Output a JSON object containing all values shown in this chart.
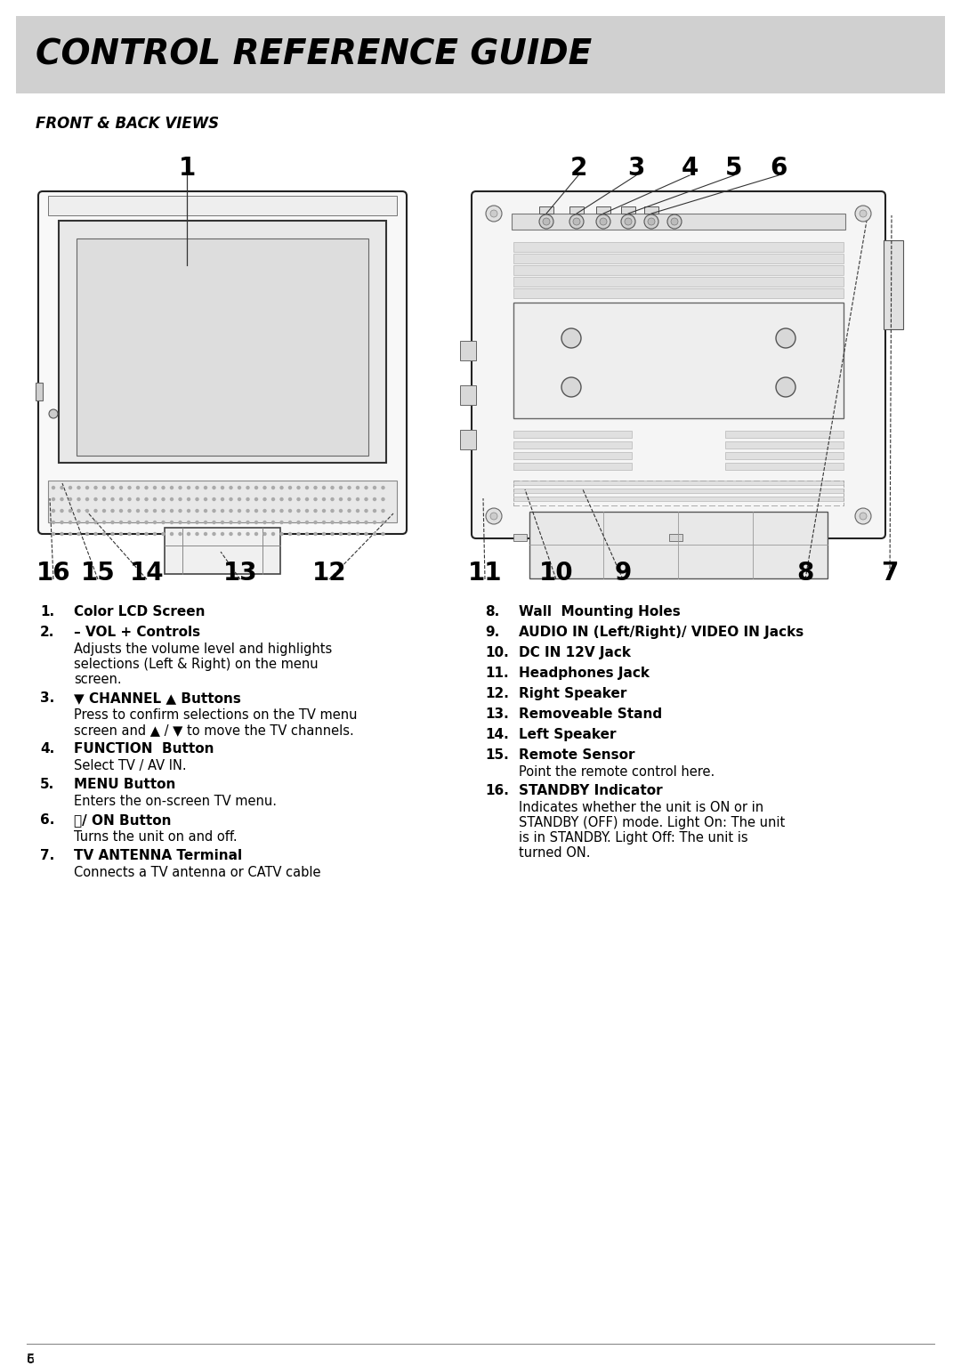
{
  "title": "CONTROL REFERENCE GUIDE",
  "subtitle": "FRONT & BACK VIEWS",
  "bg_color": "#ffffff",
  "header_bg": "#d0d0d0",
  "title_color": "#000000",
  "items_left": [
    {
      "num": "1.",
      "bold": "Color LCD Screen",
      "desc": ""
    },
    {
      "num": "2.",
      "bold": "– VOL + Controls",
      "desc": "Adjusts the volume level and highlights selections (Left & Right) on the menu screen."
    },
    {
      "num": "3.",
      "bold": "▼ CHANNEL ▲ Buttons",
      "desc": "Press to confirm selections on the TV menu screen and ▲ / ▼ to move the TV channels."
    },
    {
      "num": "4.",
      "bold": "FUNCTION  Button",
      "desc": "Select TV / AV IN."
    },
    {
      "num": "5.",
      "bold": "MENU Button",
      "desc": "Enters the on-screen TV menu."
    },
    {
      "num": "6.",
      "bold": "⏻/ ON Button",
      "desc": "Turns the unit on and off."
    },
    {
      "num": "7.",
      "bold": "TV ANTENNA Terminal",
      "desc": "Connects a TV antenna or CATV cable"
    }
  ],
  "items_right": [
    {
      "num": "8.",
      "bold": "Wall  Mounting Holes",
      "desc": ""
    },
    {
      "num": "9.",
      "bold": "AUDIO IN (Left/Right)/ VIDEO IN Jacks",
      "desc": ""
    },
    {
      "num": "10.",
      "bold": "DC IN 12V Jack",
      "desc": ""
    },
    {
      "num": "11.",
      "bold": "Headphones Jack",
      "desc": ""
    },
    {
      "num": "12.",
      "bold": "Right Speaker",
      "desc": ""
    },
    {
      "num": "13.",
      "bold": "Removeable Stand",
      "desc": ""
    },
    {
      "num": "14.",
      "bold": "Left Speaker",
      "desc": ""
    },
    {
      "num": "15.",
      "bold": "Remote Sensor",
      "desc": "Point the remote control here."
    },
    {
      "num": "16.",
      "bold": "STANDBY Indicator",
      "desc": "Indicates whether the unit is ON or in STANDBY (OFF) mode. Light On: The unit is in STANDBY. Light Off: The unit is turned ON."
    }
  ]
}
